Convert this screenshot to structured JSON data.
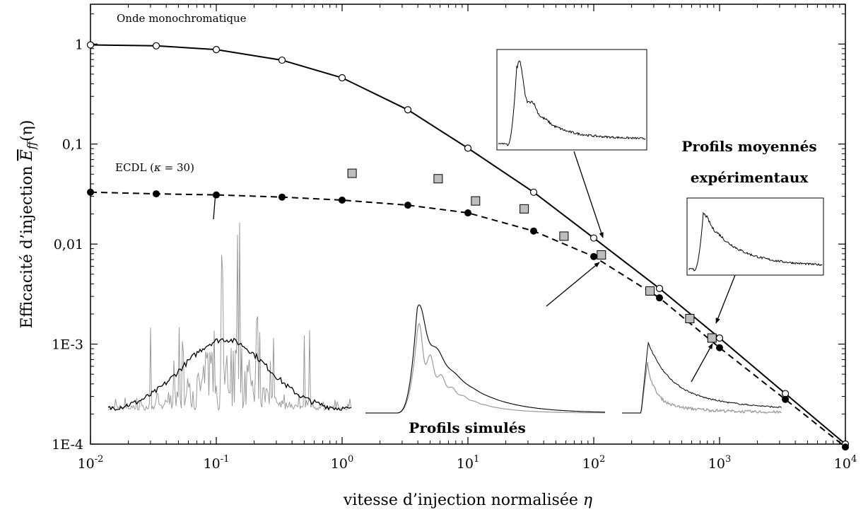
{
  "chart_data": {
    "type": "scatter",
    "xlabel": "vitesse d’injection normalisée",
    "xlabel_symbol": "η",
    "ylabel": "Efficacité d’injection",
    "ylabel_symbol": "E",
    "ylabel_subscript": "ff",
    "ylabel_argument": "(η)",
    "x_scale": "log",
    "y_scale": "log",
    "xlim": [
      0.01,
      10000
    ],
    "ylim": [
      0.0001,
      2.5
    ],
    "grid": false,
    "x_ticks": [
      {
        "value": 0.01,
        "base": "10",
        "exp": "-2"
      },
      {
        "value": 0.1,
        "base": "10",
        "exp": "-1"
      },
      {
        "value": 1,
        "base": "10",
        "exp": "0"
      },
      {
        "value": 10,
        "base": "10",
        "exp": "1"
      },
      {
        "value": 100,
        "base": "10",
        "exp": "2"
      },
      {
        "value": 1000,
        "base": "10",
        "exp": "3"
      },
      {
        "value": 10000,
        "base": "10",
        "exp": "4"
      }
    ],
    "y_ticks": [
      {
        "value": 1,
        "label": "1"
      },
      {
        "value": 0.1,
        "label": "0,1"
      },
      {
        "value": 0.01,
        "label": "0,01"
      },
      {
        "value": 0.001,
        "label": "1E-3"
      },
      {
        "value": 0.0001,
        "label": "1E-4"
      }
    ],
    "series": [
      {
        "label_text": "Onde monochromatique",
        "marker": "open-circle",
        "line": "solid",
        "x": [
          0.01,
          0.0333,
          0.1,
          0.333,
          1,
          3.33,
          10,
          33.3,
          100,
          333,
          1000,
          3333,
          10000
        ],
        "y": [
          0.98,
          0.96,
          0.88,
          0.69,
          0.46,
          0.22,
          0.091,
          0.033,
          0.0115,
          0.0036,
          0.00115,
          0.00032,
          0.0001
        ]
      },
      {
        "label_text": "ECDL (",
        "label_kappa": "κ",
        "label_suffix": " = 30)",
        "marker": "filled-circle",
        "line": "dashed",
        "x": [
          0.01,
          0.0333,
          0.1,
          0.333,
          1,
          3.33,
          10,
          33.3,
          100,
          333,
          1000,
          3333,
          10000
        ],
        "y": [
          0.033,
          0.0318,
          0.031,
          0.0295,
          0.0275,
          0.0245,
          0.0205,
          0.0135,
          0.0075,
          0.0029,
          0.00092,
          0.00028,
          9.35e-05
        ]
      },
      {
        "label_text": "Profils moyennés expérimentaux",
        "marker": "square",
        "line": "none",
        "x": [
          1.2,
          5.8,
          11.5,
          28,
          58,
          115,
          280,
          580,
          870
        ],
        "y": [
          0.051,
          0.045,
          0.027,
          0.0225,
          0.012,
          0.0078,
          0.0034,
          0.0018,
          0.00115
        ]
      }
    ],
    "annotations": {
      "simulated_title": "Profils simulés",
      "experimental_title_line1": "Profils moyennés",
      "experimental_title_line2": "expérimentaux"
    }
  }
}
